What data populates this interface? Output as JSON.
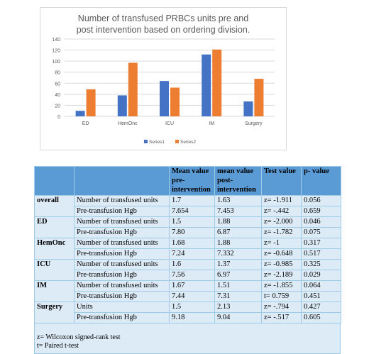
{
  "chart_data": {
    "type": "bar",
    "title": "Number of transfused PRBCs units pre and post intervention based on ordering division.",
    "categories": [
      "ED",
      "HemOnc",
      "ICU",
      "IM",
      "Surgery"
    ],
    "series": [
      {
        "name": "Series1",
        "values": [
          10,
          38,
          64,
          112,
          27
        ],
        "color": "#4472c4"
      },
      {
        "name": "Series2",
        "values": [
          49,
          97,
          52,
          121,
          68
        ],
        "color": "#ed7d31"
      }
    ],
    "yticks": [
      0,
      20,
      40,
      60,
      80,
      100,
      120,
      140
    ],
    "ylim": [
      0,
      140
    ],
    "grid": true,
    "legend": "bottom"
  },
  "table": {
    "headers": [
      "",
      "",
      "Mean value pre-intervention",
      "mean value post-intervention",
      "Test value",
      "p- value"
    ],
    "groups": [
      {
        "name": "overall",
        "rows": [
          [
            "Number of transfused units",
            "1.7",
            "1.63",
            "z= -1.911",
            "0.056"
          ],
          [
            "Pre-transfusion Hgb",
            "7.654",
            "7.453",
            "z= -.442",
            "0.659"
          ]
        ]
      },
      {
        "name": "ED",
        "rows": [
          [
            "Number of transfused units",
            "1.5",
            "1.88",
            "z= -2.000",
            "0.046"
          ],
          [
            "Pre-transfusion Hgb",
            "7.80",
            "6.87",
            "z= -1.782",
            "0.075"
          ]
        ]
      },
      {
        "name": "HemOnc",
        "rows": [
          [
            "Number of transfused units",
            "1.68",
            "1.88",
            "z= -1",
            "0.317"
          ],
          [
            "Pre-transfusion Hgb",
            "7.24",
            "7.332",
            "z= -0.648",
            "0.517"
          ]
        ]
      },
      {
        "name": "ICU",
        "rows": [
          [
            "Number of transfused units",
            "1.6",
            "1.37",
            "z= -0.985",
            "0.325"
          ],
          [
            "Pre-transfusion Hgb",
            "7.56",
            "6.97",
            "z= -2.189",
            "0.029"
          ]
        ]
      },
      {
        "name": "IM",
        "rows": [
          [
            "Number of transfused units",
            "1.67",
            "1.51",
            "z= -1.855",
            "0.064"
          ],
          [
            "Pre-transfusion Hgb",
            "7.44",
            "7.31",
            "t= 0.759",
            "0.451"
          ]
        ]
      },
      {
        "name": "Surgery",
        "rows": [
          [
            "Units",
            "1.5",
            "2.13",
            "z= -.794",
            "0.427"
          ],
          [
            "Pre-transfusion Hgb",
            "9.18",
            "9.04",
            "z= -.517",
            "0.605"
          ]
        ]
      }
    ],
    "notes": [
      "z= Wilcoxon signed-rank test",
      "t= Paired t-test"
    ]
  }
}
